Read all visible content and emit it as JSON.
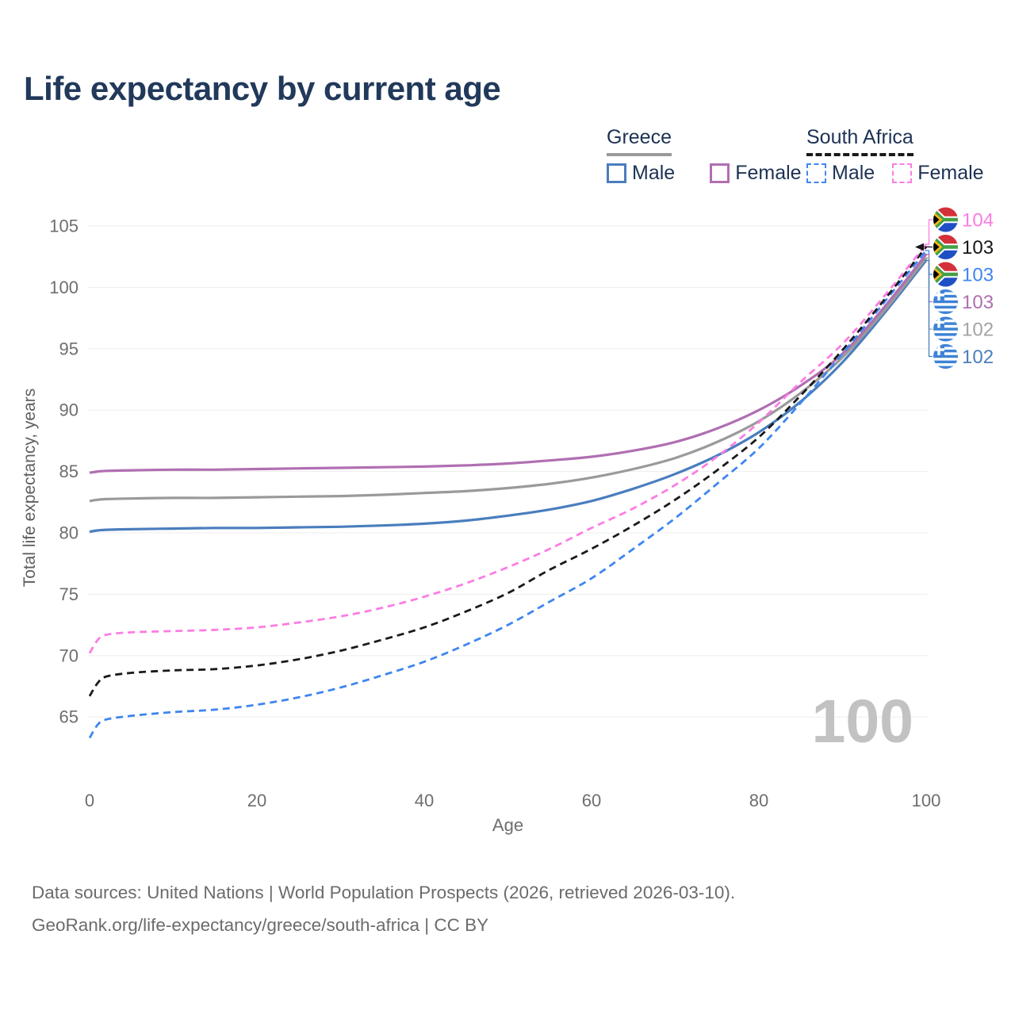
{
  "title": "Life expectancy by current age",
  "palette": {
    "background": "#ffffff",
    "title": "#21395a",
    "legend_text": "#1d3254",
    "axis_text": "#6e6e6e",
    "axis_title": "#5f5f5f",
    "grid": "#ededed",
    "watermark": "#c2c2c2",
    "footer_text": "#6b6b6b"
  },
  "legend": {
    "groups": [
      {
        "name": "Greece",
        "line_style": "solid",
        "underline_color": "#9a9a9a",
        "items": [
          {
            "label": "Male",
            "color": "#4a7ebd"
          },
          {
            "label": "Female",
            "color": "#b06fb2"
          }
        ]
      },
      {
        "name": "South Africa",
        "line_style": "dashed",
        "underline_color": "#1a1a1a",
        "items": [
          {
            "label": "Male",
            "color": "#3e86f0"
          },
          {
            "label": "Female",
            "color": "#fb7de2"
          }
        ]
      }
    ]
  },
  "chart_data": {
    "type": "line",
    "title": "Life expectancy by current age",
    "xlabel": "Age",
    "ylabel": "Total life expectancy, years",
    "x_ticks": [
      0,
      20,
      40,
      60,
      80,
      100
    ],
    "y_ticks": [
      65,
      70,
      75,
      80,
      85,
      90,
      95,
      100,
      105
    ],
    "xlim": [
      0,
      100
    ],
    "ylim": [
      63,
      106
    ],
    "grid": "horizontal",
    "legend_position": "top-right",
    "watermark": "100",
    "x": [
      0,
      1,
      2,
      5,
      10,
      15,
      20,
      25,
      30,
      35,
      40,
      45,
      50,
      55,
      60,
      65,
      70,
      75,
      80,
      85,
      90,
      95,
      100
    ],
    "series": [
      {
        "name": "Greece Male",
        "country": "Greece",
        "sex": "Male",
        "color": "#4a7ebd",
        "style": "solid",
        "end_label": "102",
        "values": [
          80.1,
          80.2,
          80.25,
          80.3,
          80.35,
          80.4,
          80.4,
          80.45,
          80.5,
          80.6,
          80.75,
          81.0,
          81.4,
          81.9,
          82.6,
          83.6,
          84.8,
          86.3,
          88.2,
          90.7,
          93.9,
          97.9,
          102.2
        ]
      },
      {
        "name": "Greece Total",
        "country": "Greece",
        "sex": "Both",
        "color": "#9a9a9a",
        "style": "solid",
        "end_label": "102",
        "values": [
          82.6,
          82.7,
          82.75,
          82.8,
          82.85,
          82.85,
          82.9,
          82.95,
          83.0,
          83.1,
          83.25,
          83.4,
          83.65,
          84.0,
          84.5,
          85.2,
          86.1,
          87.4,
          89.1,
          91.4,
          94.3,
          98.1,
          102.4
        ]
      },
      {
        "name": "Greece Female",
        "country": "Greece",
        "sex": "Female",
        "color": "#b06fb2",
        "style": "solid",
        "end_label": "103",
        "values": [
          84.9,
          85.0,
          85.05,
          85.1,
          85.15,
          85.15,
          85.2,
          85.25,
          85.3,
          85.35,
          85.4,
          85.5,
          85.65,
          85.9,
          86.2,
          86.7,
          87.4,
          88.5,
          90.0,
          92.0,
          94.6,
          98.4,
          102.7
        ]
      },
      {
        "name": "South Africa Male",
        "country": "South Africa",
        "sex": "Male",
        "color": "#3e86f0",
        "style": "dashed",
        "end_label": "103",
        "values": [
          63.3,
          64.4,
          64.8,
          65.1,
          65.4,
          65.6,
          66.0,
          66.6,
          67.4,
          68.4,
          69.5,
          70.9,
          72.5,
          74.4,
          76.3,
          78.7,
          81.2,
          84.0,
          86.9,
          90.6,
          94.6,
          98.8,
          103.0
        ]
      },
      {
        "name": "South Africa Total",
        "country": "South Africa",
        "sex": "Both",
        "color": "#1a1a1a",
        "style": "dashed",
        "end_label": "103",
        "values": [
          66.7,
          67.8,
          68.3,
          68.6,
          68.8,
          68.9,
          69.2,
          69.7,
          70.4,
          71.3,
          72.3,
          73.6,
          75.1,
          77.0,
          78.7,
          80.6,
          82.7,
          85.1,
          87.8,
          91.2,
          94.9,
          99.0,
          103.3
        ]
      },
      {
        "name": "South Africa Female",
        "country": "South Africa",
        "sex": "Female",
        "color": "#fb7de2",
        "style": "dashed",
        "end_label": "104",
        "values": [
          70.2,
          71.3,
          71.7,
          71.9,
          72.0,
          72.1,
          72.3,
          72.7,
          73.2,
          73.9,
          74.8,
          75.9,
          77.2,
          78.7,
          80.4,
          82.0,
          83.9,
          86.2,
          89.0,
          92.3,
          95.4,
          99.3,
          103.5
        ]
      }
    ],
    "right_labels": [
      {
        "value": "104",
        "color": "#fb7de2",
        "flag": "south-africa",
        "series": "South Africa Female",
        "end_value": 103.5
      },
      {
        "value": "103",
        "color": "#161616",
        "flag": "south-africa",
        "series": "South Africa Total",
        "end_value": 103.3,
        "arrow": true
      },
      {
        "value": "103",
        "color": "#3e86f0",
        "flag": "south-africa",
        "series": "South Africa Male",
        "end_value": 103.0
      },
      {
        "value": "103",
        "color": "#b06fb2",
        "flag": "greece",
        "series": "Greece Female",
        "end_value": 102.7
      },
      {
        "value": "102",
        "color": "#a3a3a3",
        "flag": "greece",
        "series": "Greece Total",
        "end_value": 102.4
      },
      {
        "value": "102",
        "color": "#4a7ebd",
        "flag": "greece",
        "series": "Greece Male",
        "end_value": 102.2
      }
    ]
  },
  "footer": {
    "line1": "Data sources: United Nations | World Population Prospects (2026, retrieved 2026-03-10).",
    "line2": "GeoRank.org/life-expectancy/greece/south-africa | CC BY"
  }
}
